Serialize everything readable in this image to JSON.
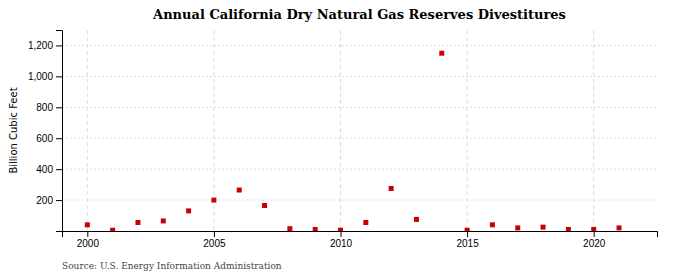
{
  "chart_data": {
    "type": "scatter",
    "title": "Annual California Dry Natural Gas Reserves Divestitures",
    "ylabel": "Billion Cubic Feet",
    "annotations": [
      "Source: U.S. Energy Information Administration"
    ],
    "x": [
      2000,
      2001,
      2002,
      2003,
      2004,
      2005,
      2006,
      2007,
      2008,
      2009,
      2010,
      2011,
      2012,
      2013,
      2014,
      2015,
      2016,
      2017,
      2018,
      2019,
      2020,
      2021
    ],
    "values": [
      40,
      5,
      55,
      65,
      130,
      200,
      265,
      165,
      15,
      10,
      5,
      55,
      275,
      75,
      1150,
      5,
      40,
      20,
      25,
      10,
      10,
      20
    ],
    "color": "#cc0000",
    "marker": "square",
    "xlim": [
      1999,
      2022.5
    ],
    "ylim": [
      0,
      1300
    ],
    "xticks": [
      2000,
      2005,
      2010,
      2015,
      2020
    ],
    "yticks": [
      200,
      400,
      600,
      800,
      {
        "value": 1000,
        "label": "1,000"
      },
      {
        "value": 1200,
        "label": "1,200"
      }
    ],
    "grid": true
  }
}
